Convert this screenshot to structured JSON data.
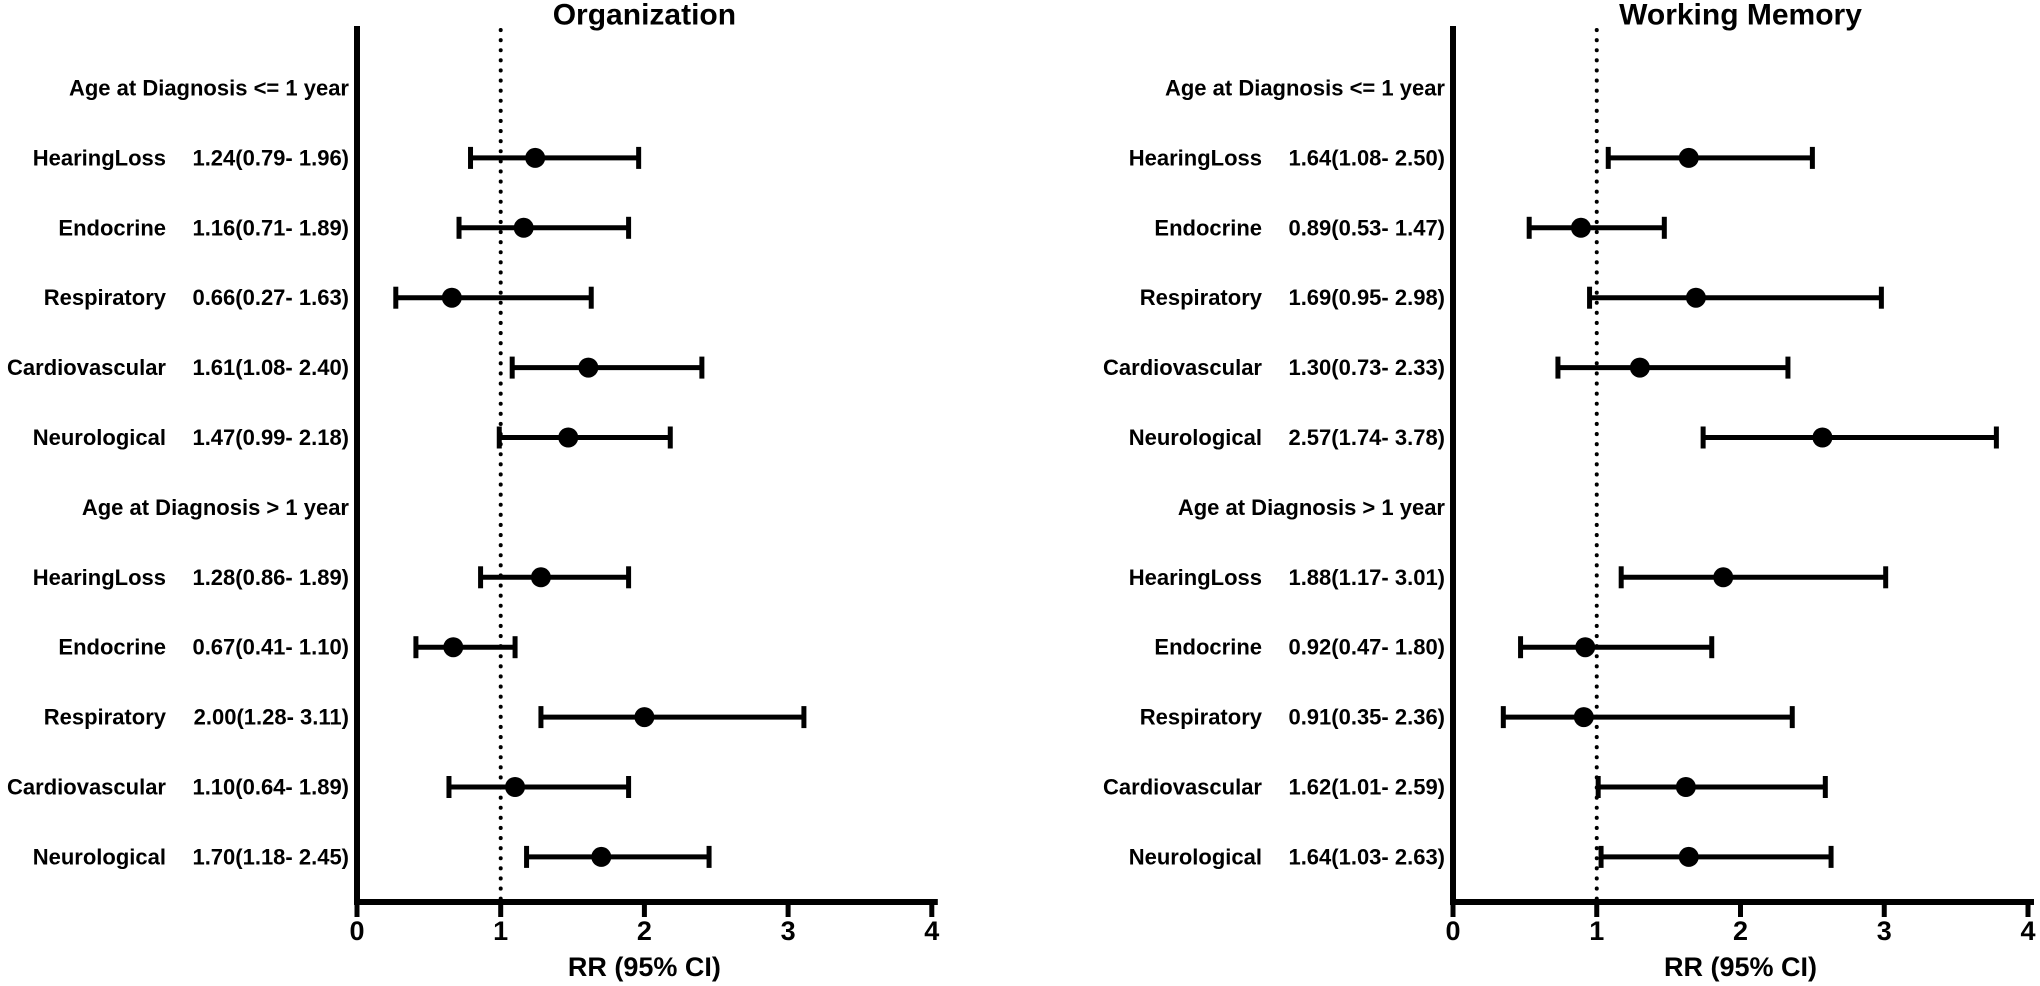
{
  "colors": {
    "foreground": "#000000",
    "background": "#ffffff"
  },
  "chart_data": [
    {
      "type": "scatter",
      "subtype": "forest-plot",
      "title": "Organization",
      "xlabel": "RR (95% CI)",
      "xlim": [
        0,
        4
      ],
      "x_ticks": [
        0,
        1,
        2,
        3,
        4
      ],
      "reference_line_x": 1,
      "grid": false,
      "rows": [
        {
          "kind": "header",
          "label": "Age at Diagnosis <= 1 year"
        },
        {
          "kind": "estimate",
          "label": "HearingLoss",
          "text": "1.24(0.79- 1.96)",
          "rr": 1.24,
          "ci_low": 0.79,
          "ci_high": 1.96
        },
        {
          "kind": "estimate",
          "label": "Endocrine",
          "text": "1.16(0.71- 1.89)",
          "rr": 1.16,
          "ci_low": 0.71,
          "ci_high": 1.89
        },
        {
          "kind": "estimate",
          "label": "Respiratory",
          "text": "0.66(0.27- 1.63)",
          "rr": 0.66,
          "ci_low": 0.27,
          "ci_high": 1.63
        },
        {
          "kind": "estimate",
          "label": "Cardiovascular",
          "text": "1.61(1.08- 2.40)",
          "rr": 1.61,
          "ci_low": 1.08,
          "ci_high": 2.4
        },
        {
          "kind": "estimate",
          "label": "Neurological",
          "text": "1.47(0.99- 2.18)",
          "rr": 1.47,
          "ci_low": 0.99,
          "ci_high": 2.18
        },
        {
          "kind": "header",
          "label": "Age at Diagnosis > 1 year"
        },
        {
          "kind": "estimate",
          "label": "HearingLoss",
          "text": "1.28(0.86- 1.89)",
          "rr": 1.28,
          "ci_low": 0.86,
          "ci_high": 1.89
        },
        {
          "kind": "estimate",
          "label": "Endocrine",
          "text": "0.67(0.41- 1.10)",
          "rr": 0.67,
          "ci_low": 0.41,
          "ci_high": 1.1
        },
        {
          "kind": "estimate",
          "label": "Respiratory",
          "text": "2.00(1.28- 3.11)",
          "rr": 2.0,
          "ci_low": 1.28,
          "ci_high": 3.11
        },
        {
          "kind": "estimate",
          "label": "Cardiovascular",
          "text": "1.10(0.64- 1.89)",
          "rr": 1.1,
          "ci_low": 0.64,
          "ci_high": 1.89
        },
        {
          "kind": "estimate",
          "label": "Neurological",
          "text": "1.70(1.18- 2.45)",
          "rr": 1.7,
          "ci_low": 1.18,
          "ci_high": 2.45
        }
      ]
    },
    {
      "type": "scatter",
      "subtype": "forest-plot",
      "title": "Working Memory",
      "xlabel": "RR (95% CI)",
      "xlim": [
        0,
        4
      ],
      "x_ticks": [
        0,
        1,
        2,
        3,
        4
      ],
      "reference_line_x": 1,
      "grid": false,
      "rows": [
        {
          "kind": "header",
          "label": "Age at Diagnosis <= 1 year"
        },
        {
          "kind": "estimate",
          "label": "HearingLoss",
          "text": "1.64(1.08- 2.50)",
          "rr": 1.64,
          "ci_low": 1.08,
          "ci_high": 2.5
        },
        {
          "kind": "estimate",
          "label": "Endocrine",
          "text": "0.89(0.53- 1.47)",
          "rr": 0.89,
          "ci_low": 0.53,
          "ci_high": 1.47
        },
        {
          "kind": "estimate",
          "label": "Respiratory",
          "text": "1.69(0.95- 2.98)",
          "rr": 1.69,
          "ci_low": 0.95,
          "ci_high": 2.98
        },
        {
          "kind": "estimate",
          "label": "Cardiovascular",
          "text": "1.30(0.73- 2.33)",
          "rr": 1.3,
          "ci_low": 0.73,
          "ci_high": 2.33
        },
        {
          "kind": "estimate",
          "label": "Neurological",
          "text": "2.57(1.74- 3.78)",
          "rr": 2.57,
          "ci_low": 1.74,
          "ci_high": 3.78
        },
        {
          "kind": "header",
          "label": "Age at Diagnosis > 1 year"
        },
        {
          "kind": "estimate",
          "label": "HearingLoss",
          "text": "1.88(1.17- 3.01)",
          "rr": 1.88,
          "ci_low": 1.17,
          "ci_high": 3.01
        },
        {
          "kind": "estimate",
          "label": "Endocrine",
          "text": "0.92(0.47- 1.80)",
          "rr": 0.92,
          "ci_low": 0.47,
          "ci_high": 1.8
        },
        {
          "kind": "estimate",
          "label": "Respiratory",
          "text": "0.91(0.35- 2.36)",
          "rr": 0.91,
          "ci_low": 0.35,
          "ci_high": 2.36
        },
        {
          "kind": "estimate",
          "label": "Cardiovascular",
          "text": "1.62(1.01- 2.59)",
          "rr": 1.62,
          "ci_low": 1.01,
          "ci_high": 2.59
        },
        {
          "kind": "estimate",
          "label": "Neurological",
          "text": "1.64(1.03- 2.63)",
          "rr": 1.64,
          "ci_low": 1.03,
          "ci_high": 2.63
        }
      ]
    }
  ]
}
